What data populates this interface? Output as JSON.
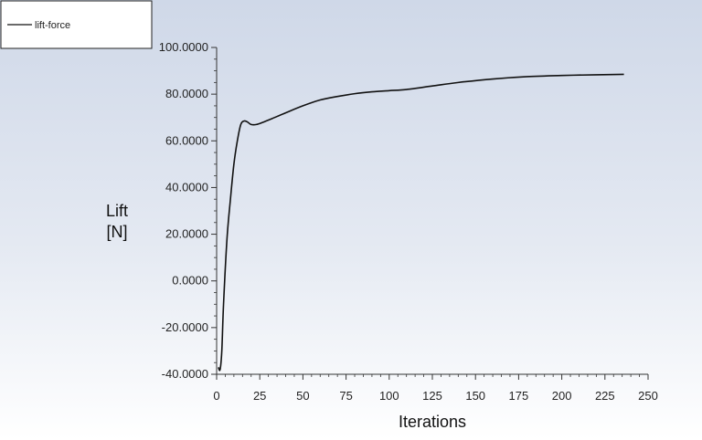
{
  "chart_data": {
    "type": "line",
    "title": "",
    "xlabel": "Iterations",
    "ylabel": "Lift [N]",
    "ylabel_lines": [
      "Lift",
      "[N]"
    ],
    "xlim": [
      0,
      250
    ],
    "ylim": [
      -40,
      100
    ],
    "x_ticks": [
      0,
      25,
      50,
      75,
      100,
      125,
      150,
      175,
      200,
      225,
      250
    ],
    "x_tick_labels": [
      "0",
      "25",
      "50",
      "75",
      "100",
      "125",
      "150",
      "175",
      "200",
      "225",
      "250"
    ],
    "y_ticks": [
      -40,
      -20,
      0,
      20,
      40,
      60,
      80,
      100
    ],
    "y_tick_labels": [
      "-40.0000",
      "-20.0000",
      "0.0000",
      "20.0000",
      "40.0000",
      "60.0000",
      "80.0000",
      "100.0000"
    ],
    "grid": false,
    "legend_position": "top-left",
    "series": [
      {
        "name": "lift-force",
        "color": "#111111",
        "x": [
          1,
          2,
          3,
          4,
          6,
          8,
          10,
          12,
          14,
          16,
          18,
          20,
          23,
          27,
          32,
          40,
          50,
          60,
          70,
          80,
          90,
          100,
          110,
          125,
          140,
          160,
          180,
          200,
          220,
          236
        ],
        "y": [
          -37,
          -38,
          -30,
          -10,
          18,
          35,
          50,
          60,
          67,
          68.5,
          68,
          67,
          67,
          68,
          69.5,
          72,
          75,
          77.5,
          79,
          80.2,
          81,
          81.5,
          82,
          83.5,
          85,
          86.5,
          87.5,
          88,
          88.3,
          88.5
        ]
      }
    ]
  }
}
